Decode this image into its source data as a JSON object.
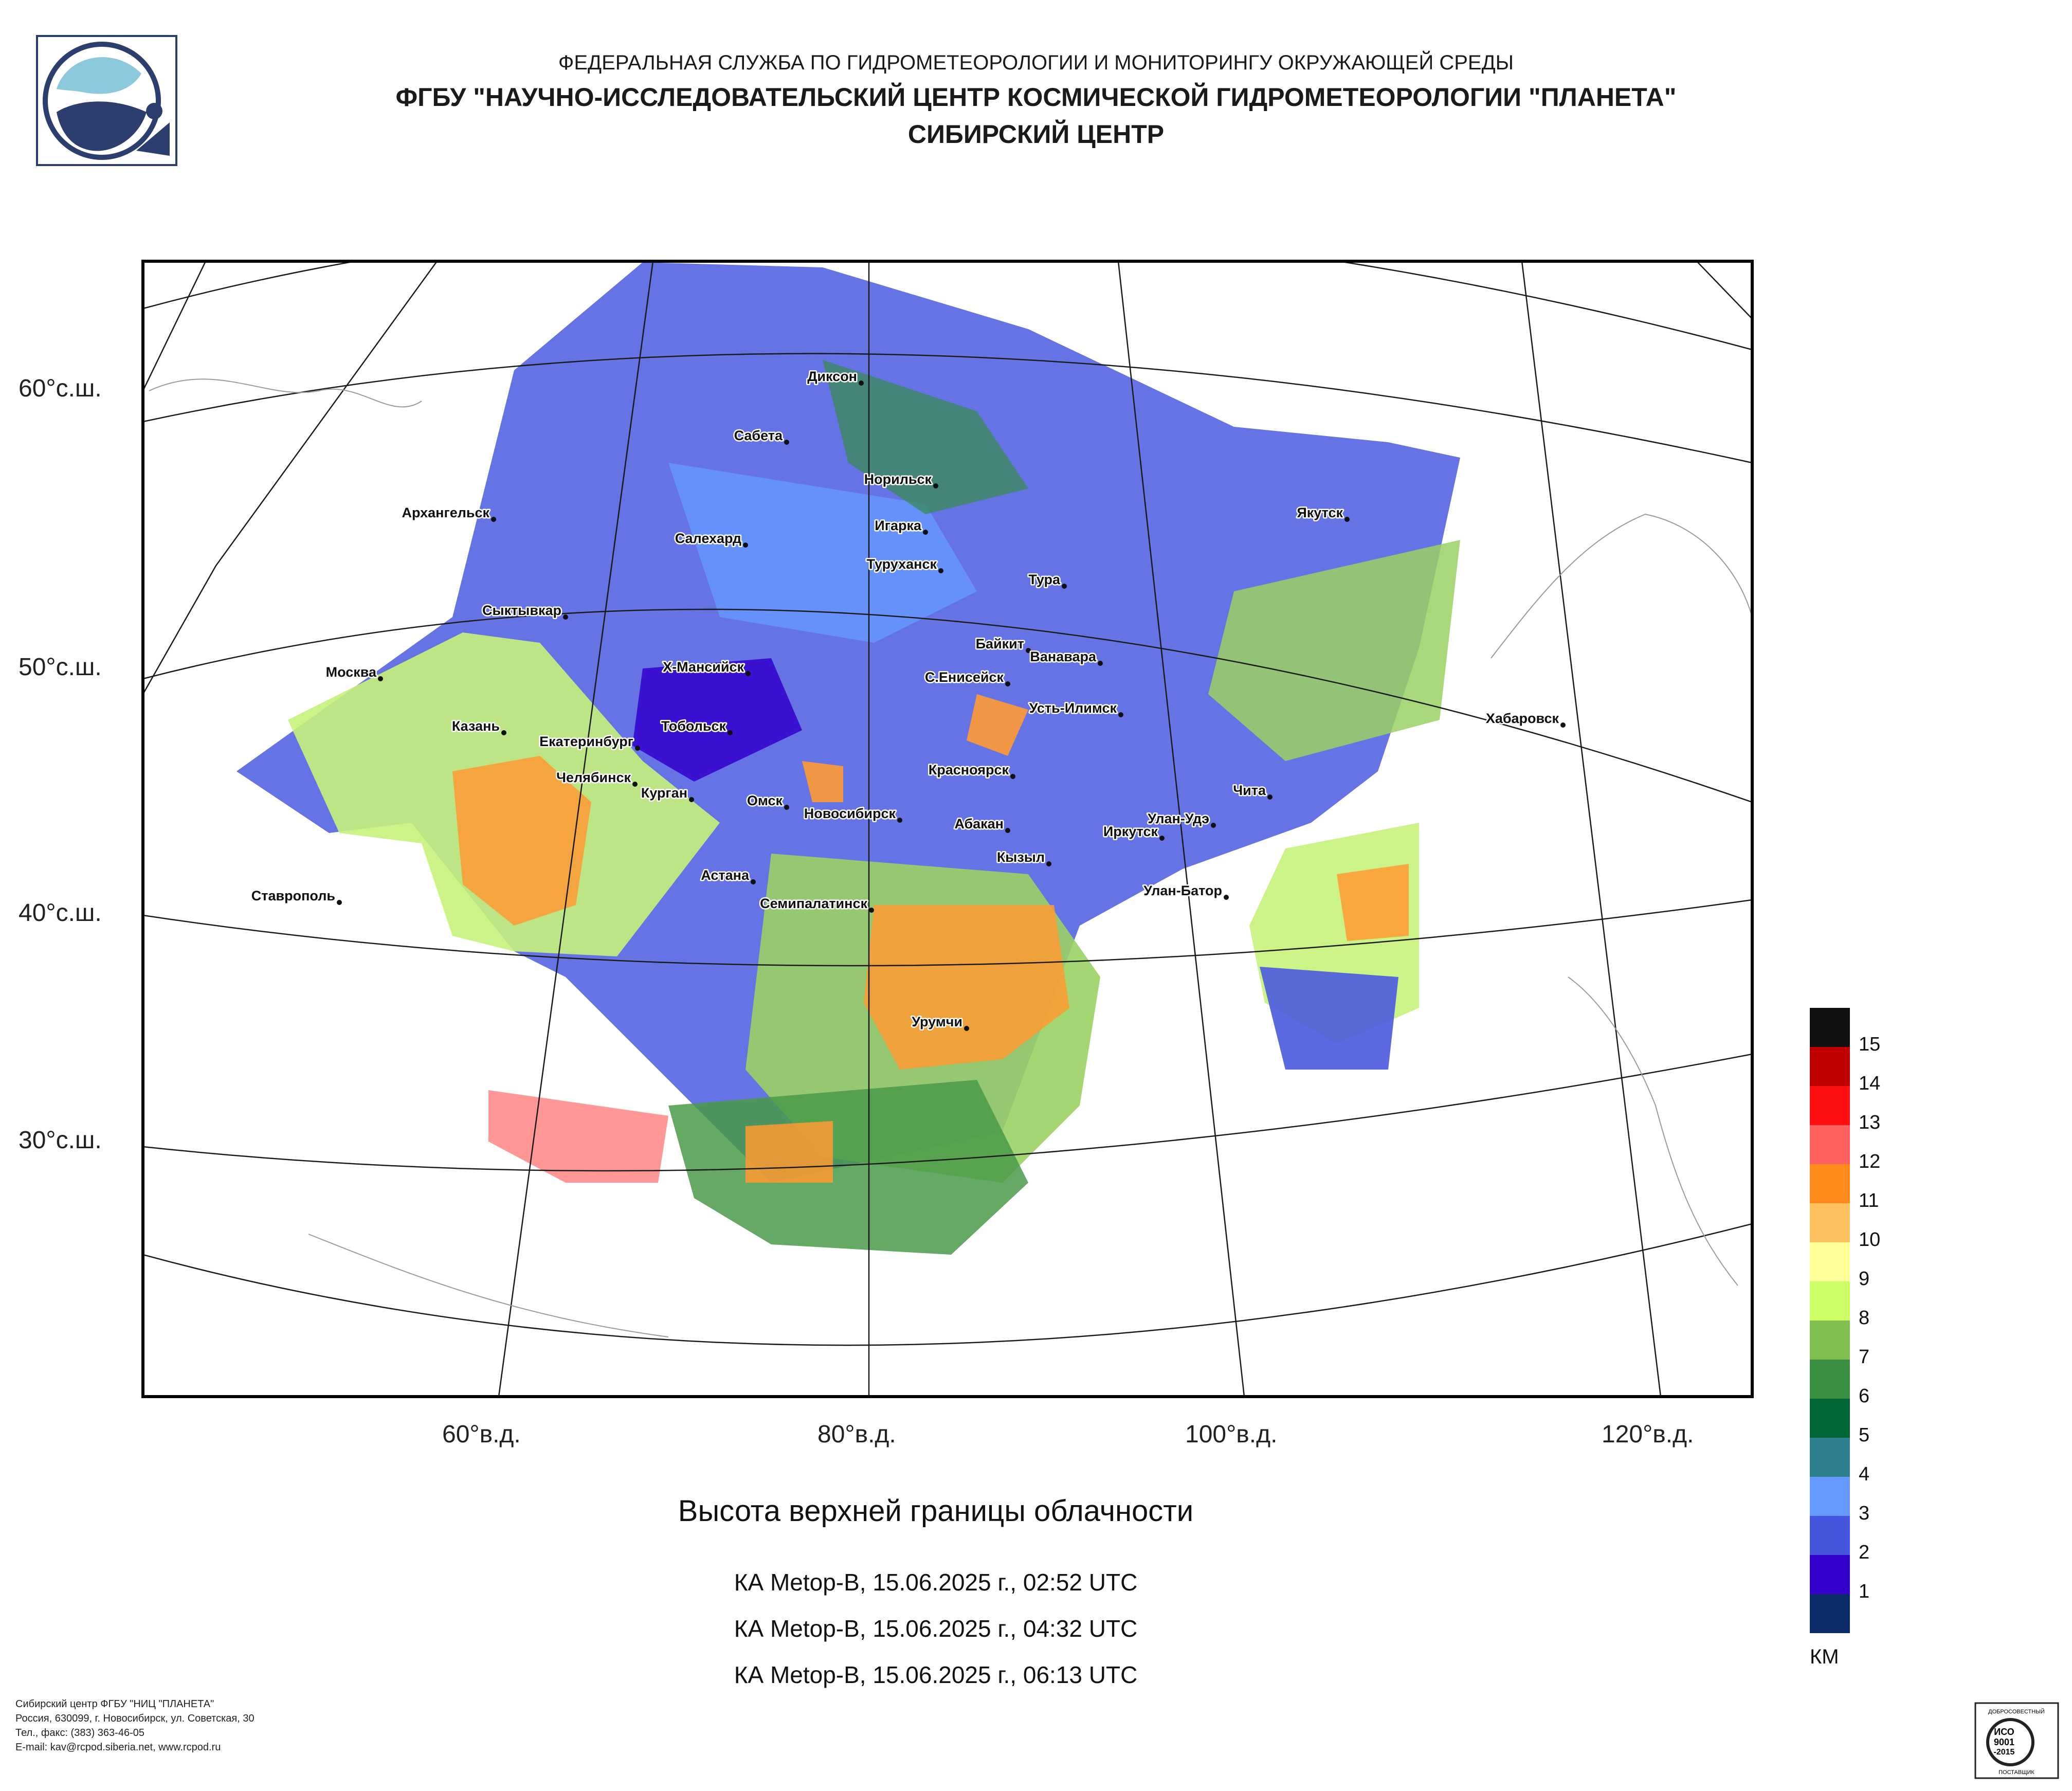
{
  "header": {
    "agency": "ФЕДЕРАЛЬНАЯ СЛУЖБА ПО ГИДРОМЕТЕОРОЛОГИИ И МОНИТОРИНГУ ОКРУЖАЮЩЕЙ СРЕДЫ",
    "institute": "ФГБУ \"НАУЧНО-ИССЛЕДОВАТЕЛЬСКИЙ ЦЕНТР КОСМИЧЕСКОЙ ГИДРОМЕТЕОРОЛОГИИ \"ПЛАНЕТА\"",
    "center": "СИБИРСКИЙ ЦЕНТР"
  },
  "latitude_labels": [
    "60°с.ш.",
    "50°с.ш.",
    "40°с.ш.",
    "30°с.ш."
  ],
  "longitude_labels": [
    "60°в.д.",
    "80°в.д.",
    "100°в.д.",
    "120°в.д."
  ],
  "cities": [
    "Диксон",
    "Сабета",
    "Норильск",
    "Игарка",
    "Архангельск",
    "Салехард",
    "Туруханск",
    "Якутск",
    "Тура",
    "Сыктывкар",
    "Байкит",
    "Ванавара",
    "Москва",
    "Х-Мансийск",
    "С.Енисейск",
    "Усть-Илимск",
    "Казань",
    "Тобольск",
    "Хабаровск",
    "Екатеринбург",
    "Красноярск",
    "Чита",
    "Челябинск",
    "Курган",
    "Омск",
    "Новосибирск",
    "Абакан",
    "Улан-Удэ",
    "Иркутск",
    "Кызыл",
    "Астана",
    "Ставрополь",
    "Улан-Батор",
    "Семипалатинск",
    "Урумчи"
  ],
  "title": "Высота верхней границы облачности",
  "passes": [
    "КА Metop-B, 15.06.2025 г., 02:52 UTC",
    "КА Metop-B, 15.06.2025 г., 04:32 UTC",
    "КА Metop-B, 15.06.2025 г., 06:13 UTC"
  ],
  "legend": {
    "unit": "КМ",
    "items": [
      {
        "label": "15",
        "color": "#111111"
      },
      {
        "label": "14",
        "color": "#c00000"
      },
      {
        "label": "13",
        "color": "#ff1010"
      },
      {
        "label": "12",
        "color": "#ff6060"
      },
      {
        "label": "11",
        "color": "#ff8c1a"
      },
      {
        "label": "10",
        "color": "#ffc060"
      },
      {
        "label": "9",
        "color": "#ffff99"
      },
      {
        "label": "8",
        "color": "#ccff66"
      },
      {
        "label": "7",
        "color": "#80c050"
      },
      {
        "label": "6",
        "color": "#3a9040"
      },
      {
        "label": "5",
        "color": "#006633"
      },
      {
        "label": "4",
        "color": "#2e8090"
      },
      {
        "label": "3",
        "color": "#6699ff"
      },
      {
        "label": "2",
        "color": "#4455dd"
      },
      {
        "label": "1",
        "color": "#3300cc"
      },
      {
        "label": "",
        "color": "#0a2a6a"
      }
    ]
  },
  "footer": [
    "Сибирский центр ФГБУ \"НИЦ \"ПЛАНЕТА\"",
    "Россия, 630099, г. Новосибирск, ул. Советская, 30",
    "Тел., факс: (383) 363-46-05",
    "E-mail: kav@rcpod.siberia.net, www.rcpod.ru"
  ],
  "certificate": {
    "top": "ДОБРОСОВЕСТНЫЙ",
    "mid1": "ИСО",
    "mid2": "9001",
    "mid3": "-2015",
    "bottom": "ПОСТАВЩИК"
  }
}
